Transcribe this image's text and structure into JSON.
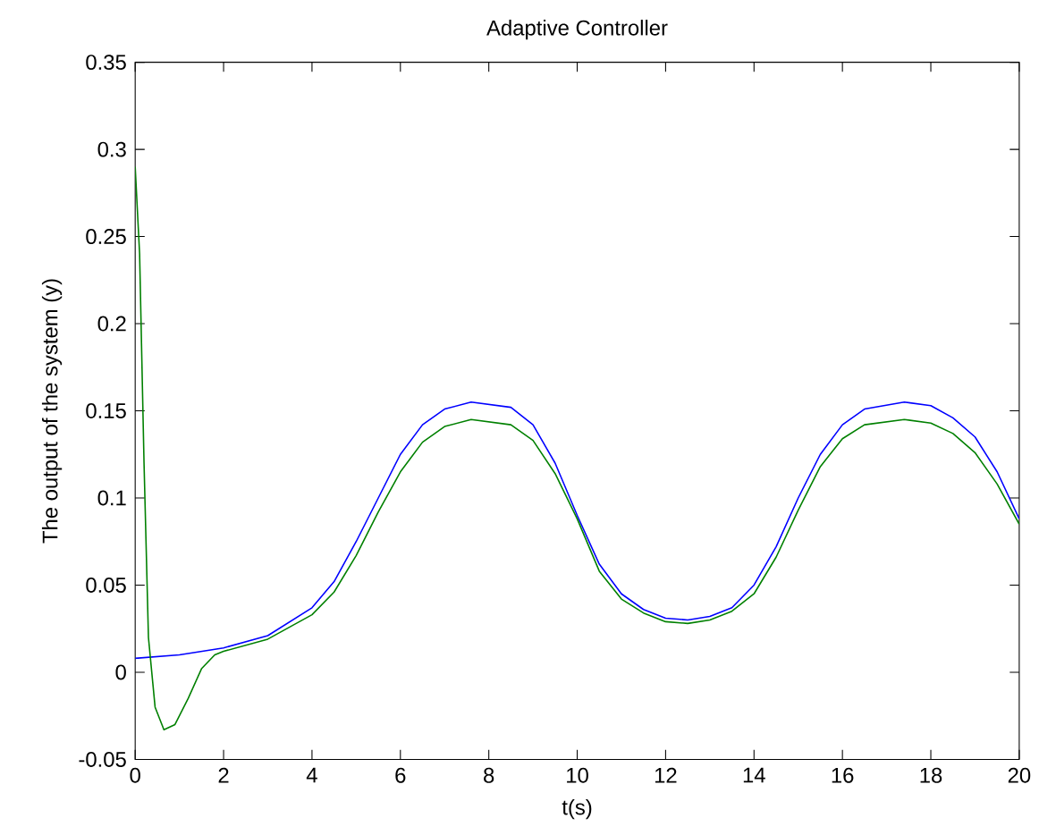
{
  "chart_data": {
    "type": "line",
    "title": "Adaptive Controller",
    "xlabel": "t(s)",
    "ylabel": "The output of the system (y)",
    "xlim": [
      0,
      20
    ],
    "ylim": [
      -0.05,
      0.35
    ],
    "xticks": [
      0,
      2,
      4,
      6,
      8,
      10,
      12,
      14,
      16,
      18,
      20
    ],
    "yticks": [
      -0.05,
      0,
      0.05,
      0.1,
      0.15,
      0.2,
      0.25,
      0.3,
      0.35
    ],
    "marker": "none",
    "line_style": "solid",
    "series": [
      {
        "color": "#0000ff",
        "x": [
          0,
          1,
          2,
          3,
          4,
          4.5,
          5,
          5.5,
          6,
          6.5,
          7,
          7.6,
          8.5,
          9,
          9.5,
          10,
          10.5,
          11,
          11.5,
          12,
          12.5,
          13,
          13.5,
          14,
          14.5,
          15,
          15.5,
          16,
          16.5,
          17.4,
          18,
          18.5,
          19,
          19.5,
          20
        ],
        "values": [
          0.008,
          0.01,
          0.014,
          0.021,
          0.037,
          0.052,
          0.075,
          0.1,
          0.125,
          0.142,
          0.151,
          0.155,
          0.152,
          0.142,
          0.12,
          0.09,
          0.062,
          0.045,
          0.036,
          0.031,
          0.03,
          0.032,
          0.037,
          0.05,
          0.072,
          0.1,
          0.125,
          0.142,
          0.151,
          0.155,
          0.153,
          0.146,
          0.135,
          0.115,
          0.088
        ]
      },
      {
        "color": "#008000",
        "x": [
          0,
          0.1,
          0.2,
          0.3,
          0.45,
          0.65,
          0.9,
          1.2,
          1.5,
          1.8,
          2,
          3,
          4,
          4.5,
          5,
          5.5,
          6,
          6.5,
          7,
          7.6,
          8.5,
          9,
          9.5,
          10,
          10.5,
          11,
          11.5,
          12,
          12.5,
          13,
          13.5,
          14,
          14.5,
          15,
          15.5,
          16,
          16.5,
          17.4,
          18,
          18.5,
          19,
          19.5,
          20
        ],
        "values": [
          0.29,
          0.24,
          0.12,
          0.02,
          -0.02,
          -0.033,
          -0.03,
          -0.015,
          0.002,
          0.01,
          0.012,
          0.019,
          0.033,
          0.046,
          0.067,
          0.092,
          0.115,
          0.132,
          0.141,
          0.145,
          0.142,
          0.133,
          0.114,
          0.088,
          0.058,
          0.042,
          0.034,
          0.029,
          0.028,
          0.03,
          0.035,
          0.045,
          0.066,
          0.093,
          0.118,
          0.134,
          0.142,
          0.145,
          0.143,
          0.137,
          0.126,
          0.108,
          0.085
        ]
      }
    ]
  }
}
